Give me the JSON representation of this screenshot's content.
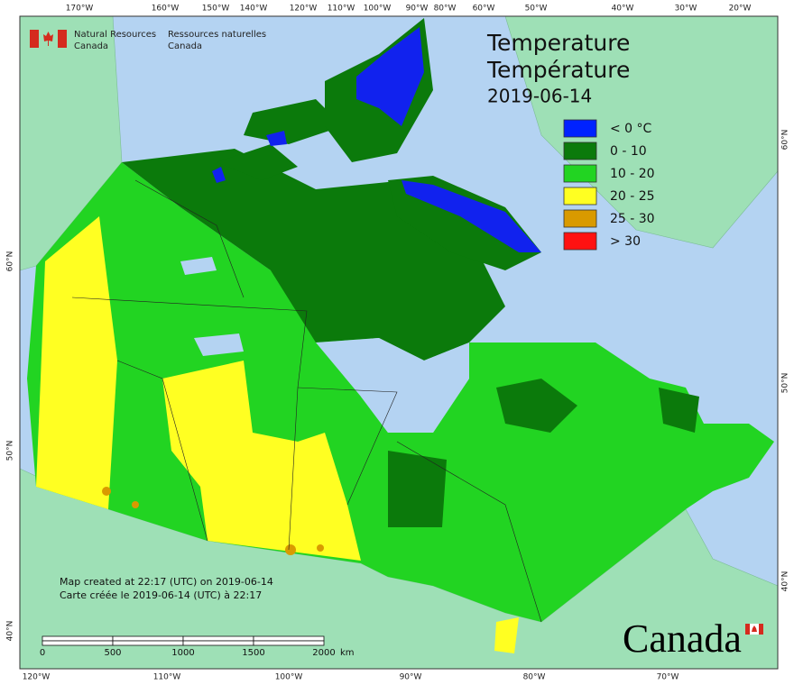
{
  "header": {
    "agency_en": "Natural Resources",
    "agency_en_2": "Canada",
    "agency_fr": "Ressources naturelles",
    "agency_fr_2": "Canada"
  },
  "title": {
    "line1": "Temperature",
    "line2": "Température",
    "date": "2019-06-14"
  },
  "legend": [
    {
      "label": "< 0 °C",
      "color": "#0022ff"
    },
    {
      "label": "0 - 10",
      "color": "#0b7a0b"
    },
    {
      "label": "10 - 20",
      "color": "#22d422"
    },
    {
      "label": "20 - 25",
      "color": "#ffff22"
    },
    {
      "label": "25 - 30",
      "color": "#d99a00"
    },
    {
      "label": "> 30",
      "color": "#ff1111"
    }
  ],
  "notes": [
    "Map created at 22:17 (UTC) on 2019-06-14",
    "Carte créée le 2019-06-14 (UTC) à 22:17"
  ],
  "scale_bar": {
    "labels": [
      "0",
      "500",
      "1000",
      "1500",
      "2000"
    ],
    "unit": "km"
  },
  "graticule": {
    "top": [
      "170°W",
      "160°W",
      "150°W",
      "140°W",
      "120°W",
      "110°W",
      "100°W",
      "90°W",
      "80°W",
      "60°W",
      "50°W",
      "40°W",
      "30°W",
      "20°W"
    ],
    "bottom": [
      "120°W",
      "110°W",
      "100°W",
      "90°W",
      "80°W",
      "70°W"
    ],
    "left": [
      "60°N",
      "50°N",
      "40°N"
    ],
    "right": [
      "60°N",
      "50°N",
      "40°N"
    ]
  },
  "wordmark": "Canada"
}
